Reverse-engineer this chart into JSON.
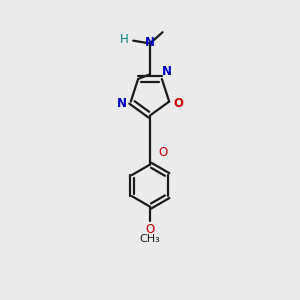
{
  "bg_color": "#ebebeb",
  "bond_color": "#1a1a1a",
  "n_color": "#0000cc",
  "o_color": "#cc0000",
  "hn_color": "#008080",
  "line_width": 1.6,
  "fig_width": 3.0,
  "fig_height": 3.0,
  "dpi": 100,
  "xlim": [
    0.2,
    0.8
  ],
  "ylim": [
    -0.05,
    1.0
  ]
}
